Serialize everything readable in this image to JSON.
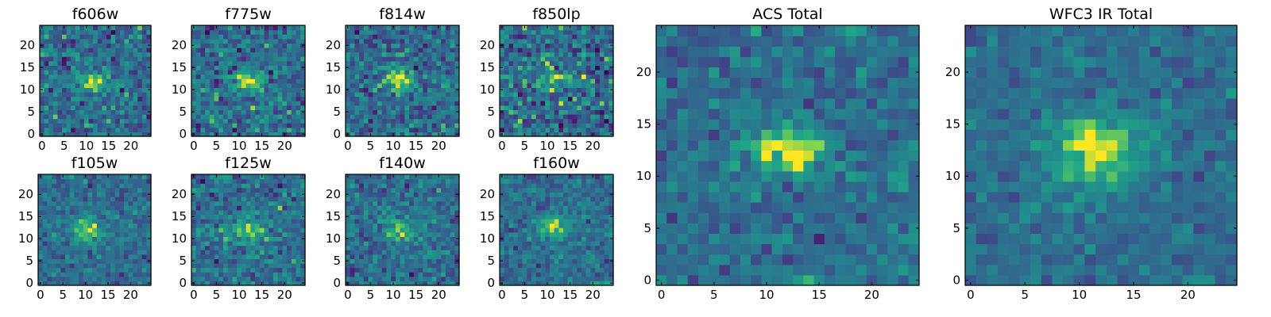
{
  "chart_data": [
    {
      "type": "heatmap",
      "title": "f606w",
      "grid": [
        25,
        25
      ],
      "xlim": [
        0,
        25
      ],
      "ylim": [
        0,
        25
      ],
      "x_ticks": [
        0,
        5,
        10,
        15,
        20
      ],
      "y_ticks": [
        0,
        5,
        10,
        15,
        20
      ],
      "colormap": "viridis",
      "source": {
        "x": 11.5,
        "y": 12.0,
        "sx": 2.6,
        "sy": 1.4,
        "amp": 1.0
      },
      "noise": 0.3,
      "seed": 11
    },
    {
      "type": "heatmap",
      "title": "f775w",
      "grid": [
        25,
        25
      ],
      "xlim": [
        0,
        25
      ],
      "ylim": [
        0,
        25
      ],
      "x_ticks": [
        0,
        5,
        10,
        15,
        20
      ],
      "y_ticks": [
        0,
        5,
        10,
        15,
        20
      ],
      "colormap": "viridis",
      "source": {
        "x": 12.0,
        "y": 12.0,
        "sx": 2.6,
        "sy": 1.5,
        "amp": 0.9
      },
      "noise": 0.3,
      "seed": 23
    },
    {
      "type": "heatmap",
      "title": "f814w",
      "grid": [
        25,
        25
      ],
      "xlim": [
        0,
        25
      ],
      "ylim": [
        0,
        25
      ],
      "x_ticks": [
        0,
        5,
        10,
        15,
        20
      ],
      "y_ticks": [
        0,
        5,
        10,
        15,
        20
      ],
      "colormap": "viridis",
      "source": {
        "x": 11.5,
        "y": 12.5,
        "sx": 2.2,
        "sy": 1.6,
        "amp": 0.9
      },
      "noise": 0.3,
      "seed": 37
    },
    {
      "type": "heatmap",
      "title": "f850lp",
      "grid": [
        25,
        25
      ],
      "xlim": [
        0,
        25
      ],
      "ylim": [
        0,
        25
      ],
      "x_ticks": [
        0,
        5,
        10,
        15,
        20
      ],
      "y_ticks": [
        0,
        5,
        10,
        15,
        20
      ],
      "colormap": "viridis",
      "source": {
        "x": 12.5,
        "y": 12.5,
        "sx": 2.6,
        "sy": 1.4,
        "amp": 0.8
      },
      "noise": 0.38,
      "seed": 41
    },
    {
      "type": "heatmap",
      "title": "f105w",
      "grid": [
        25,
        25
      ],
      "xlim": [
        0,
        25
      ],
      "ylim": [
        0,
        25
      ],
      "x_ticks": [
        0,
        5,
        10,
        15,
        20
      ],
      "y_ticks": [
        0,
        5,
        10,
        15,
        20
      ],
      "colormap": "viridis",
      "source": {
        "x": 10.5,
        "y": 12.0,
        "sx": 2.4,
        "sy": 2.2,
        "amp": 0.75
      },
      "noise": 0.22,
      "seed": 53
    },
    {
      "type": "heatmap",
      "title": "f125w",
      "grid": [
        25,
        25
      ],
      "xlim": [
        0,
        25
      ],
      "ylim": [
        0,
        25
      ],
      "x_ticks": [
        0,
        5,
        10,
        15,
        20
      ],
      "y_ticks": [
        0,
        5,
        10,
        15,
        20
      ],
      "colormap": "viridis",
      "source": {
        "x": 12.0,
        "y": 12.0,
        "sx": 2.6,
        "sy": 2.0,
        "amp": 0.65
      },
      "noise": 0.26,
      "seed": 67
    },
    {
      "type": "heatmap",
      "title": "f140w",
      "grid": [
        25,
        25
      ],
      "xlim": [
        0,
        25
      ],
      "ylim": [
        0,
        25
      ],
      "x_ticks": [
        0,
        5,
        10,
        15,
        20
      ],
      "y_ticks": [
        0,
        5,
        10,
        15,
        20
      ],
      "colormap": "viridis",
      "source": {
        "x": 11.5,
        "y": 12.0,
        "sx": 2.6,
        "sy": 2.2,
        "amp": 0.7
      },
      "noise": 0.26,
      "seed": 79
    },
    {
      "type": "heatmap",
      "title": "f160w",
      "grid": [
        25,
        25
      ],
      "xlim": [
        0,
        25
      ],
      "ylim": [
        0,
        25
      ],
      "x_ticks": [
        0,
        5,
        10,
        15,
        20
      ],
      "y_ticks": [
        0,
        5,
        10,
        15,
        20
      ],
      "colormap": "viridis",
      "source": {
        "x": 11.5,
        "y": 12.5,
        "sx": 2.6,
        "sy": 2.0,
        "amp": 0.75
      },
      "noise": 0.22,
      "seed": 83
    },
    {
      "type": "heatmap",
      "title": "ACS Total",
      "grid": [
        25,
        25
      ],
      "xlim": [
        0,
        25
      ],
      "ylim": [
        0,
        25
      ],
      "x_ticks": [
        0,
        5,
        10,
        15,
        20
      ],
      "y_ticks": [
        0,
        5,
        10,
        15,
        20
      ],
      "colormap": "viridis",
      "source": {
        "x": 12.0,
        "y": 12.5,
        "sx": 2.8,
        "sy": 1.5,
        "amp": 1.0
      },
      "noise": 0.22,
      "seed": 97
    },
    {
      "type": "heatmap",
      "title": "WFC3 IR Total",
      "grid": [
        25,
        25
      ],
      "xlim": [
        0,
        25
      ],
      "ylim": [
        0,
        25
      ],
      "x_ticks": [
        0,
        5,
        10,
        15,
        20
      ],
      "y_ticks": [
        0,
        5,
        10,
        15,
        20
      ],
      "colormap": "viridis",
      "source": {
        "x": 11.5,
        "y": 12.5,
        "sx": 3.0,
        "sy": 2.4,
        "amp": 1.0
      },
      "noise": 0.16,
      "seed": 101
    }
  ]
}
